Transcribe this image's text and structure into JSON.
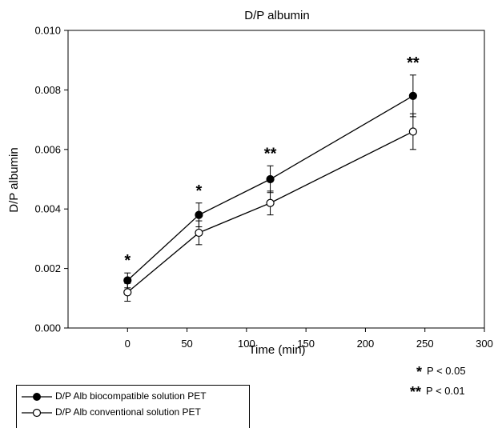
{
  "chart_data": {
    "type": "line",
    "title": "D/P albumin",
    "xlabel": "Time (min)",
    "ylabel": "D/P albumin",
    "xlim": [
      -50,
      300
    ],
    "ylim": [
      0,
      0.01
    ],
    "xticks": [
      "0",
      "50",
      "100",
      "150",
      "200",
      "250",
      "300"
    ],
    "yticks": [
      "0.000",
      "0.002",
      "0.004",
      "0.006",
      "0.008",
      "0.010"
    ],
    "x": [
      0,
      60,
      120,
      240
    ],
    "series": [
      {
        "name": "D/P Alb biocompatible solution PET",
        "marker": "filled-circle",
        "values": [
          0.0016,
          0.0038,
          0.005,
          0.0078
        ],
        "error": [
          0.00025,
          0.0004,
          0.00045,
          0.0007
        ]
      },
      {
        "name": "D/P Alb conventional solution PET",
        "marker": "open-circle",
        "values": [
          0.0012,
          0.0032,
          0.0042,
          0.0066
        ],
        "error": [
          0.0003,
          0.0004,
          0.0004,
          0.0006
        ]
      }
    ],
    "significance_markers": [
      "*",
      "*",
      "**",
      "**"
    ],
    "legend_position": "bottom-left"
  },
  "footnotes": [
    {
      "stars": "*",
      "text": "P < 0.05"
    },
    {
      "stars": "**",
      "text": "P < 0.01"
    }
  ]
}
